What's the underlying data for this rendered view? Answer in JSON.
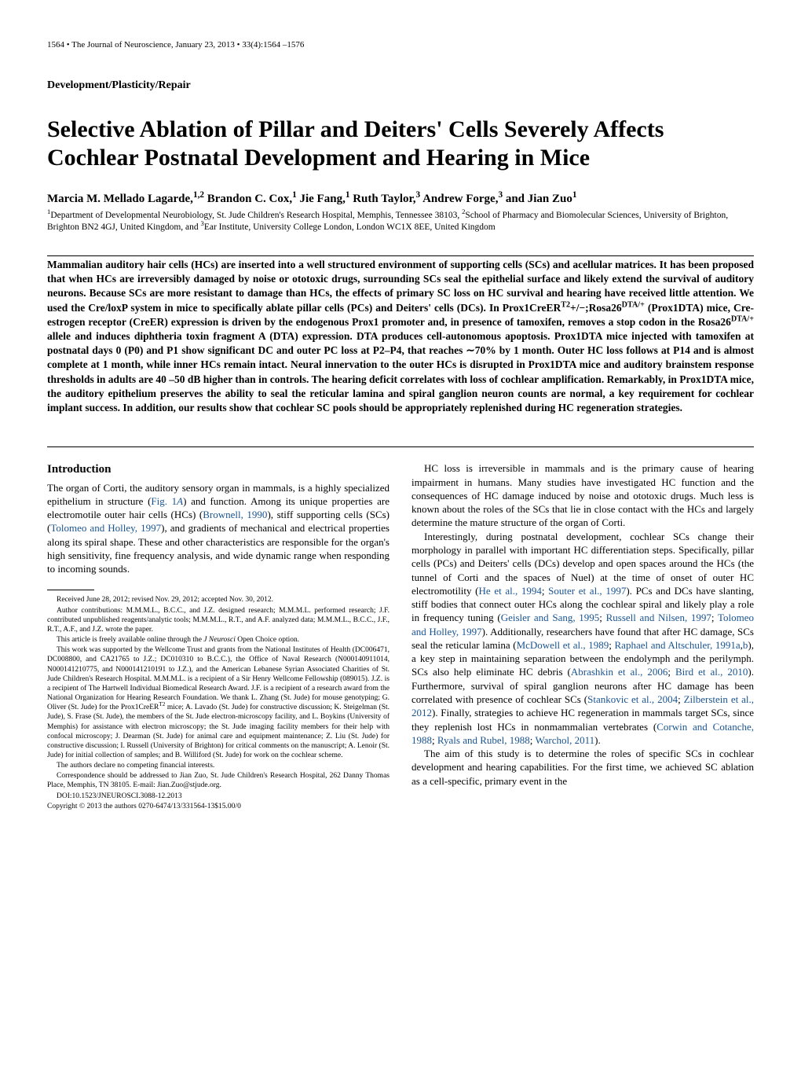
{
  "header": {
    "left": "1564 • The Journal of Neuroscience, January 23, 2013 • 33(4):1564 –1576",
    "right": ""
  },
  "section_label": "Development/Plasticity/Repair",
  "title": "Selective Ablation of Pillar and Deiters' Cells Severely Affects Cochlear Postnatal Development and Hearing in Mice",
  "authors_html": "Marcia M. Mellado Lagarde,<sup>1,2</sup> Brandon C. Cox,<sup>1</sup> Jie Fang,<sup>1</sup> Ruth Taylor,<sup>3</sup> Andrew Forge,<sup>3</sup> and Jian Zuo<sup>1</sup>",
  "affiliations_html": "<sup>1</sup>Department of Developmental Neurobiology, St. Jude Children's Research Hospital, Memphis, Tennessee 38103, <sup>2</sup>School of Pharmacy and Biomolecular Sciences, University of Brighton, Brighton BN2 4GJ, United Kingdom, and <sup>3</sup>Ear Institute, University College London, London WC1X 8EE, United Kingdom",
  "abstract_html": "Mammalian auditory hair cells (HCs) are inserted into a well structured environment of supporting cells (SCs) and acellular matrices. It has been proposed that when HCs are irreversibly damaged by noise or ototoxic drugs, surrounding SCs seal the epithelial surface and likely extend the survival of auditory neurons. Because SCs are more resistant to damage than HCs, the effects of primary SC loss on HC survival and hearing have received little attention. We used the Cre/loxP system in mice to specifically ablate pillar cells (PCs) and Deiters' cells (DCs). In Prox1CreER<sup>T2</sup>+/−;Rosa26<sup>DTA/+</sup> (Prox1DTA) mice, Cre-estrogen receptor (CreER) expression is driven by the endogenous Prox1 promoter and, in presence of tamoxifen, removes a stop codon in the Rosa26<sup>DTA/+</sup> allele and induces diphtheria toxin fragment A (DTA) expression. DTA produces cell-autonomous apoptosis. Prox1DTA mice injected with tamoxifen at postnatal days 0 (P0) and P1 show significant DC and outer PC loss at P2–P4, that reaches ∼70% by 1 month. Outer HC loss follows at P14 and is almost complete at 1 month, while inner HCs remain intact. Neural innervation to the outer HCs is disrupted in Prox1DTA mice and auditory brainstem response thresholds in adults are 40 –50 dB higher than in controls. The hearing deficit correlates with loss of cochlear amplification. Remarkably, in Prox1DTA mice, the auditory epithelium preserves the ability to seal the reticular lamina and spiral ganglion neuron counts are normal, a key requirement for cochlear implant success. In addition, our results show that cochlear SC pools should be appropriately replenished during HC regeneration strategies.",
  "intro_heading": "Introduction",
  "left_col": {
    "p1_html": "The organ of Corti, the auditory sensory organ in mammals, is a highly specialized epithelium in structure (<span class='ref-link'>Fig. 1<i>A</i></span>) and function. Among its unique properties are electromotile outer hair cells (HCs) (<span class='ref-link'>Brownell, 1990</span>), stiff supporting cells (SCs) (<span class='ref-link'>Tolomeo and Holley, 1997</span>), and gradients of mechanical and electrical properties along its spiral shape. These and other characteristics are responsible for the organ's high sensitivity, fine frequency analysis, and wide dynamic range when responding to incoming sounds."
  },
  "footnotes": {
    "received": "Received June 28, 2012; revised Nov. 29, 2012; accepted Nov. 30, 2012.",
    "contributions": "Author contributions: M.M.M.L., B.C.C., and J.Z. designed research; M.M.M.L. performed research; J.F. contributed unpublished reagents/analytic tools; M.M.M.L., R.T., and A.F. analyzed data; M.M.M.L., B.C.C., J.F., R.T., A.F., and J.Z. wrote the paper.",
    "open": "This article is freely available online through the <i>J Neurosci</i> Open Choice option.",
    "funding": "This work was supported by the Wellcome Trust and grants from the National Institutes of Health (DC006471, DC008800, and CA21765 to J.Z.; DC010310 to B.C.C.), the Office of Naval Research (N000140911014, N000141210775, and N000141210191 to J.Z.), and the American Lebanese Syrian Associated Charities of St. Jude Children's Research Hospital. M.M.M.L. is a recipient of a Sir Henry Wellcome Fellowship (089015). J.Z. is a recipient of The Hartwell Individual Biomedical Research Award. J.F. is a recipient of a research award from the National Organization for Hearing Research Foundation. We thank L. Zhang (St. Jude) for mouse genotyping; G. Oliver (St. Jude) for the Prox1CreER<sup>T2</sup> mice; A. Lavado (St. Jude) for constructive discussion; K. Steigelman (St. Jude), S. Frase (St. Jude), the members of the St. Jude electron-microscopy facility, and L. Boykins (University of Memphis) for assistance with electron microscopy; the St. Jude imaging facility members for their help with confocal microscopy; J. Dearman (St. Jude) for animal care and equipment maintenance; Z. Liu (St. Jude) for constructive discussion; I. Russell (University of Brighton) for critical comments on the manuscript; A. Lenoir (St. Jude) for initial collection of samples; and B. Williford (St. Jude) for work on the cochlear scheme.",
    "conflict": "The authors declare no competing financial interests.",
    "correspondence": "Correspondence should be addressed to Jian Zuo, St. Jude Children's Research Hospital, 262 Danny Thomas Place, Memphis, TN 38105. E-mail: Jian.Zuo@stjude.org.",
    "doi": "DOI:10.1523/JNEUROSCI.3088-12.2013",
    "copyright": "Copyright © 2013 the authors     0270-6474/13/331564-13$15.00/0"
  },
  "right_col": {
    "p1_html": "HC loss is irreversible in mammals and is the primary cause of hearing impairment in humans. Many studies have investigated HC function and the consequences of HC damage induced by noise and ototoxic drugs. Much less is known about the roles of the SCs that lie in close contact with the HCs and largely determine the mature structure of the organ of Corti.",
    "p2_html": "Interestingly, during postnatal development, cochlear SCs change their morphology in parallel with important HC differentiation steps. Specifically, pillar cells (PCs) and Deiters' cells (DCs) develop and open spaces around the HCs (the tunnel of Corti and the spaces of Nuel) at the time of onset of outer HC electromotility (<span class='ref-link'>He et al., 1994</span>; <span class='ref-link'>Souter et al., 1997</span>). PCs and DCs have slanting, stiff bodies that connect outer HCs along the cochlear spiral and likely play a role in frequency tuning (<span class='ref-link'>Geisler and Sang, 1995</span>; <span class='ref-link'>Russell and Nilsen, 1997</span>; <span class='ref-link'>Tolomeo and Holley, 1997</span>). Additionally, researchers have found that after HC damage, SCs seal the reticular lamina (<span class='ref-link'>McDowell et al., 1989</span>; <span class='ref-link'>Raphael and Altschuler, 1991a</span>,<span class='ref-link'>b</span>), a key step in maintaining separation between the endolymph and the perilymph. SCs also help eliminate HC debris (<span class='ref-link'>Abrashkin et al., 2006</span>; <span class='ref-link'>Bird et al., 2010</span>). Furthermore, survival of spiral ganglion neurons after HC damage has been correlated with presence of cochlear SCs (<span class='ref-link'>Stankovic et al., 2004</span>; <span class='ref-link'>Zilberstein et al., 2012</span>). Finally, strategies to achieve HC regeneration in mammals target SCs, since they replenish lost HCs in nonmammalian vertebrates (<span class='ref-link'>Corwin and Cotanche, 1988</span>; <span class='ref-link'>Ryals and Rubel, 1988</span>; <span class='ref-link'>Warchol, 2011</span>).",
    "p3_html": "The aim of this study is to determine the roles of specific SCs in cochlear development and hearing capabilities. For the first time, we achieved SC ablation as a cell-specific, primary event in the"
  }
}
